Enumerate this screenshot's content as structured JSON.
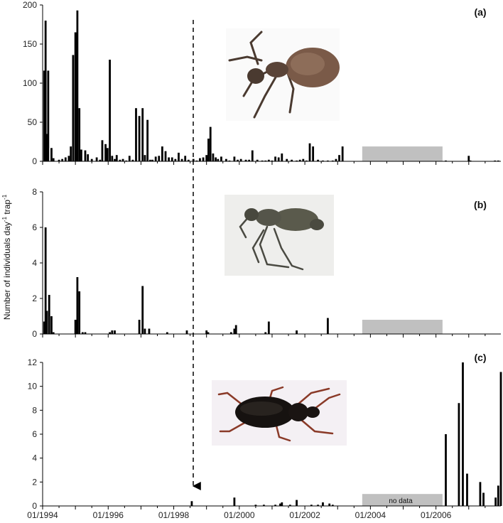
{
  "ylabel": {
    "main": "Number of individuals day",
    "sup1": "-1",
    "mid": " trap",
    "sup2": "-1"
  },
  "colors": {
    "bar": "#000000",
    "nodata": "#c0c0c0",
    "axis": "#000000"
  },
  "chart_data": [
    {
      "type": "bar",
      "panel_label": "(a)",
      "ylim": [
        0,
        200
      ],
      "yticks": [
        0,
        50,
        100,
        150,
        200
      ],
      "xlim_years": [
        1994.0,
        1999.0
      ],
      "nodata_range_years": [
        2003.75,
        2006.2
      ],
      "nodata_height": 19,
      "image_icon": "ant-photo",
      "x": [
        1994.05,
        1994.09,
        1994.13,
        1994.17,
        1994.27,
        1994.33,
        1994.5,
        1994.6,
        1994.7,
        1994.8,
        1994.86,
        1994.93,
        1995.0,
        1995.06,
        1995.12,
        1995.18,
        1995.3,
        1995.38,
        1995.5,
        1995.65,
        1995.75,
        1995.82,
        1995.92,
        1995.98,
        1996.05,
        1996.12,
        1996.2,
        1996.26,
        1996.36,
        1996.45,
        1996.55,
        1996.65,
        1996.75,
        1996.85,
        1996.95,
        1997.05,
        1997.12,
        1997.2,
        1997.28,
        1997.35,
        1997.45,
        1997.55,
        1997.65,
        1997.75,
        1997.85,
        1997.95,
        1998.05,
        1998.15,
        1998.25,
        1998.35,
        1998.45,
        1998.6,
        1998.7,
        1998.8,
        1998.9,
        1999.0,
        1999.06,
        1999.12,
        1999.2,
        1999.28,
        1999.35,
        1999.45,
        1999.6,
        1999.7,
        1999.85,
        1999.95,
        2000.05,
        2000.2,
        2000.3,
        2000.4,
        2000.55,
        2000.7,
        2000.8,
        2000.9,
        2001.0,
        2001.1,
        2001.2,
        2001.3,
        2001.45,
        2001.6,
        2001.75,
        2001.85,
        2001.95,
        2002.05,
        2002.15,
        2002.25,
        2002.4,
        2002.55,
        2002.7,
        2002.85,
        2002.95,
        2003.05,
        2003.15,
        2006.3,
        2007.0,
        2007.05,
        2007.8,
        2007.9
      ],
      "values": [
        116,
        180,
        35,
        116,
        17,
        4,
        2,
        3,
        5,
        7,
        19,
        136,
        165,
        193,
        68,
        15,
        14,
        9,
        3,
        5,
        2,
        27,
        22,
        17,
        130,
        7,
        3,
        8,
        2,
        3,
        1,
        7,
        2,
        68,
        58,
        68,
        8,
        53,
        2,
        2,
        6,
        7,
        19,
        13,
        5,
        5,
        3,
        11,
        3,
        7,
        2,
        3,
        1,
        4,
        5,
        8,
        29,
        44,
        10,
        5,
        3,
        6,
        3,
        1,
        6,
        2,
        3,
        2,
        2,
        14,
        2,
        1,
        1,
        2,
        1,
        6,
        5,
        10,
        3,
        2,
        1,
        2,
        3,
        1,
        23,
        19,
        2,
        1,
        1,
        1,
        3,
        8,
        19,
        1,
        7,
        1,
        1,
        1
      ]
    },
    {
      "type": "bar",
      "panel_label": "(b)",
      "ylim": [
        0,
        8
      ],
      "yticks": [
        0,
        2,
        4,
        6,
        8
      ],
      "nodata_range_years": [
        2003.75,
        2006.2
      ],
      "nodata_height": 0.8,
      "image_icon": "wingless-wasp-photo",
      "x": [
        1994.05,
        1994.09,
        1994.13,
        1994.2,
        1994.27,
        1994.33,
        1995.0,
        1995.06,
        1995.12,
        1995.22,
        1995.3,
        1996.05,
        1996.12,
        1996.2,
        1996.95,
        1997.05,
        1997.12,
        1997.25,
        1997.8,
        1998.4,
        1999.0,
        1999.05,
        1999.75,
        1999.85,
        1999.9,
        2000.8,
        2000.9,
        2001.75,
        2002.7
      ],
      "values": [
        0.7,
        6.0,
        1.3,
        2.2,
        1.0,
        0.1,
        0.8,
        3.2,
        2.4,
        0.1,
        0.1,
        0.1,
        0.2,
        0.2,
        0.8,
        2.7,
        0.3,
        0.3,
        0.1,
        0.2,
        0.2,
        0.1,
        0.1,
        0.3,
        0.5,
        0.1,
        0.7,
        0.2,
        0.9
      ]
    },
    {
      "type": "bar",
      "panel_label": "(c)",
      "ylim": [
        0,
        12
      ],
      "yticks": [
        0,
        2,
        4,
        6,
        8,
        10,
        12
      ],
      "xtick_labels": [
        "01/1994",
        "01/1996",
        "01/1998",
        "01/2000",
        "01/2002",
        "01/2004",
        "01/2006"
      ],
      "nodata_label": "no data",
      "nodata_range_years": [
        2003.75,
        2006.2
      ],
      "nodata_height": 1.0,
      "image_icon": "ground-beetle-photo",
      "arrow_date_years": 1998.55,
      "x": [
        1998.55,
        1999.85,
        2000.5,
        2000.75,
        2001.1,
        2001.25,
        2001.3,
        2001.55,
        2001.75,
        2002.2,
        2002.4,
        2002.55,
        2002.75,
        2002.85,
        2006.3,
        2006.7,
        2006.82,
        2006.95,
        2007.35,
        2007.45,
        2007.82,
        2007.9,
        2007.98
      ],
      "values": [
        0.4,
        0.7,
        0.1,
        0.1,
        0.1,
        0.2,
        0.3,
        0.1,
        0.5,
        0.1,
        0.1,
        0.3,
        0.2,
        0.1,
        6.0,
        8.6,
        12.0,
        2.7,
        2.0,
        1.1,
        0.7,
        1.7,
        11.2
      ]
    }
  ]
}
